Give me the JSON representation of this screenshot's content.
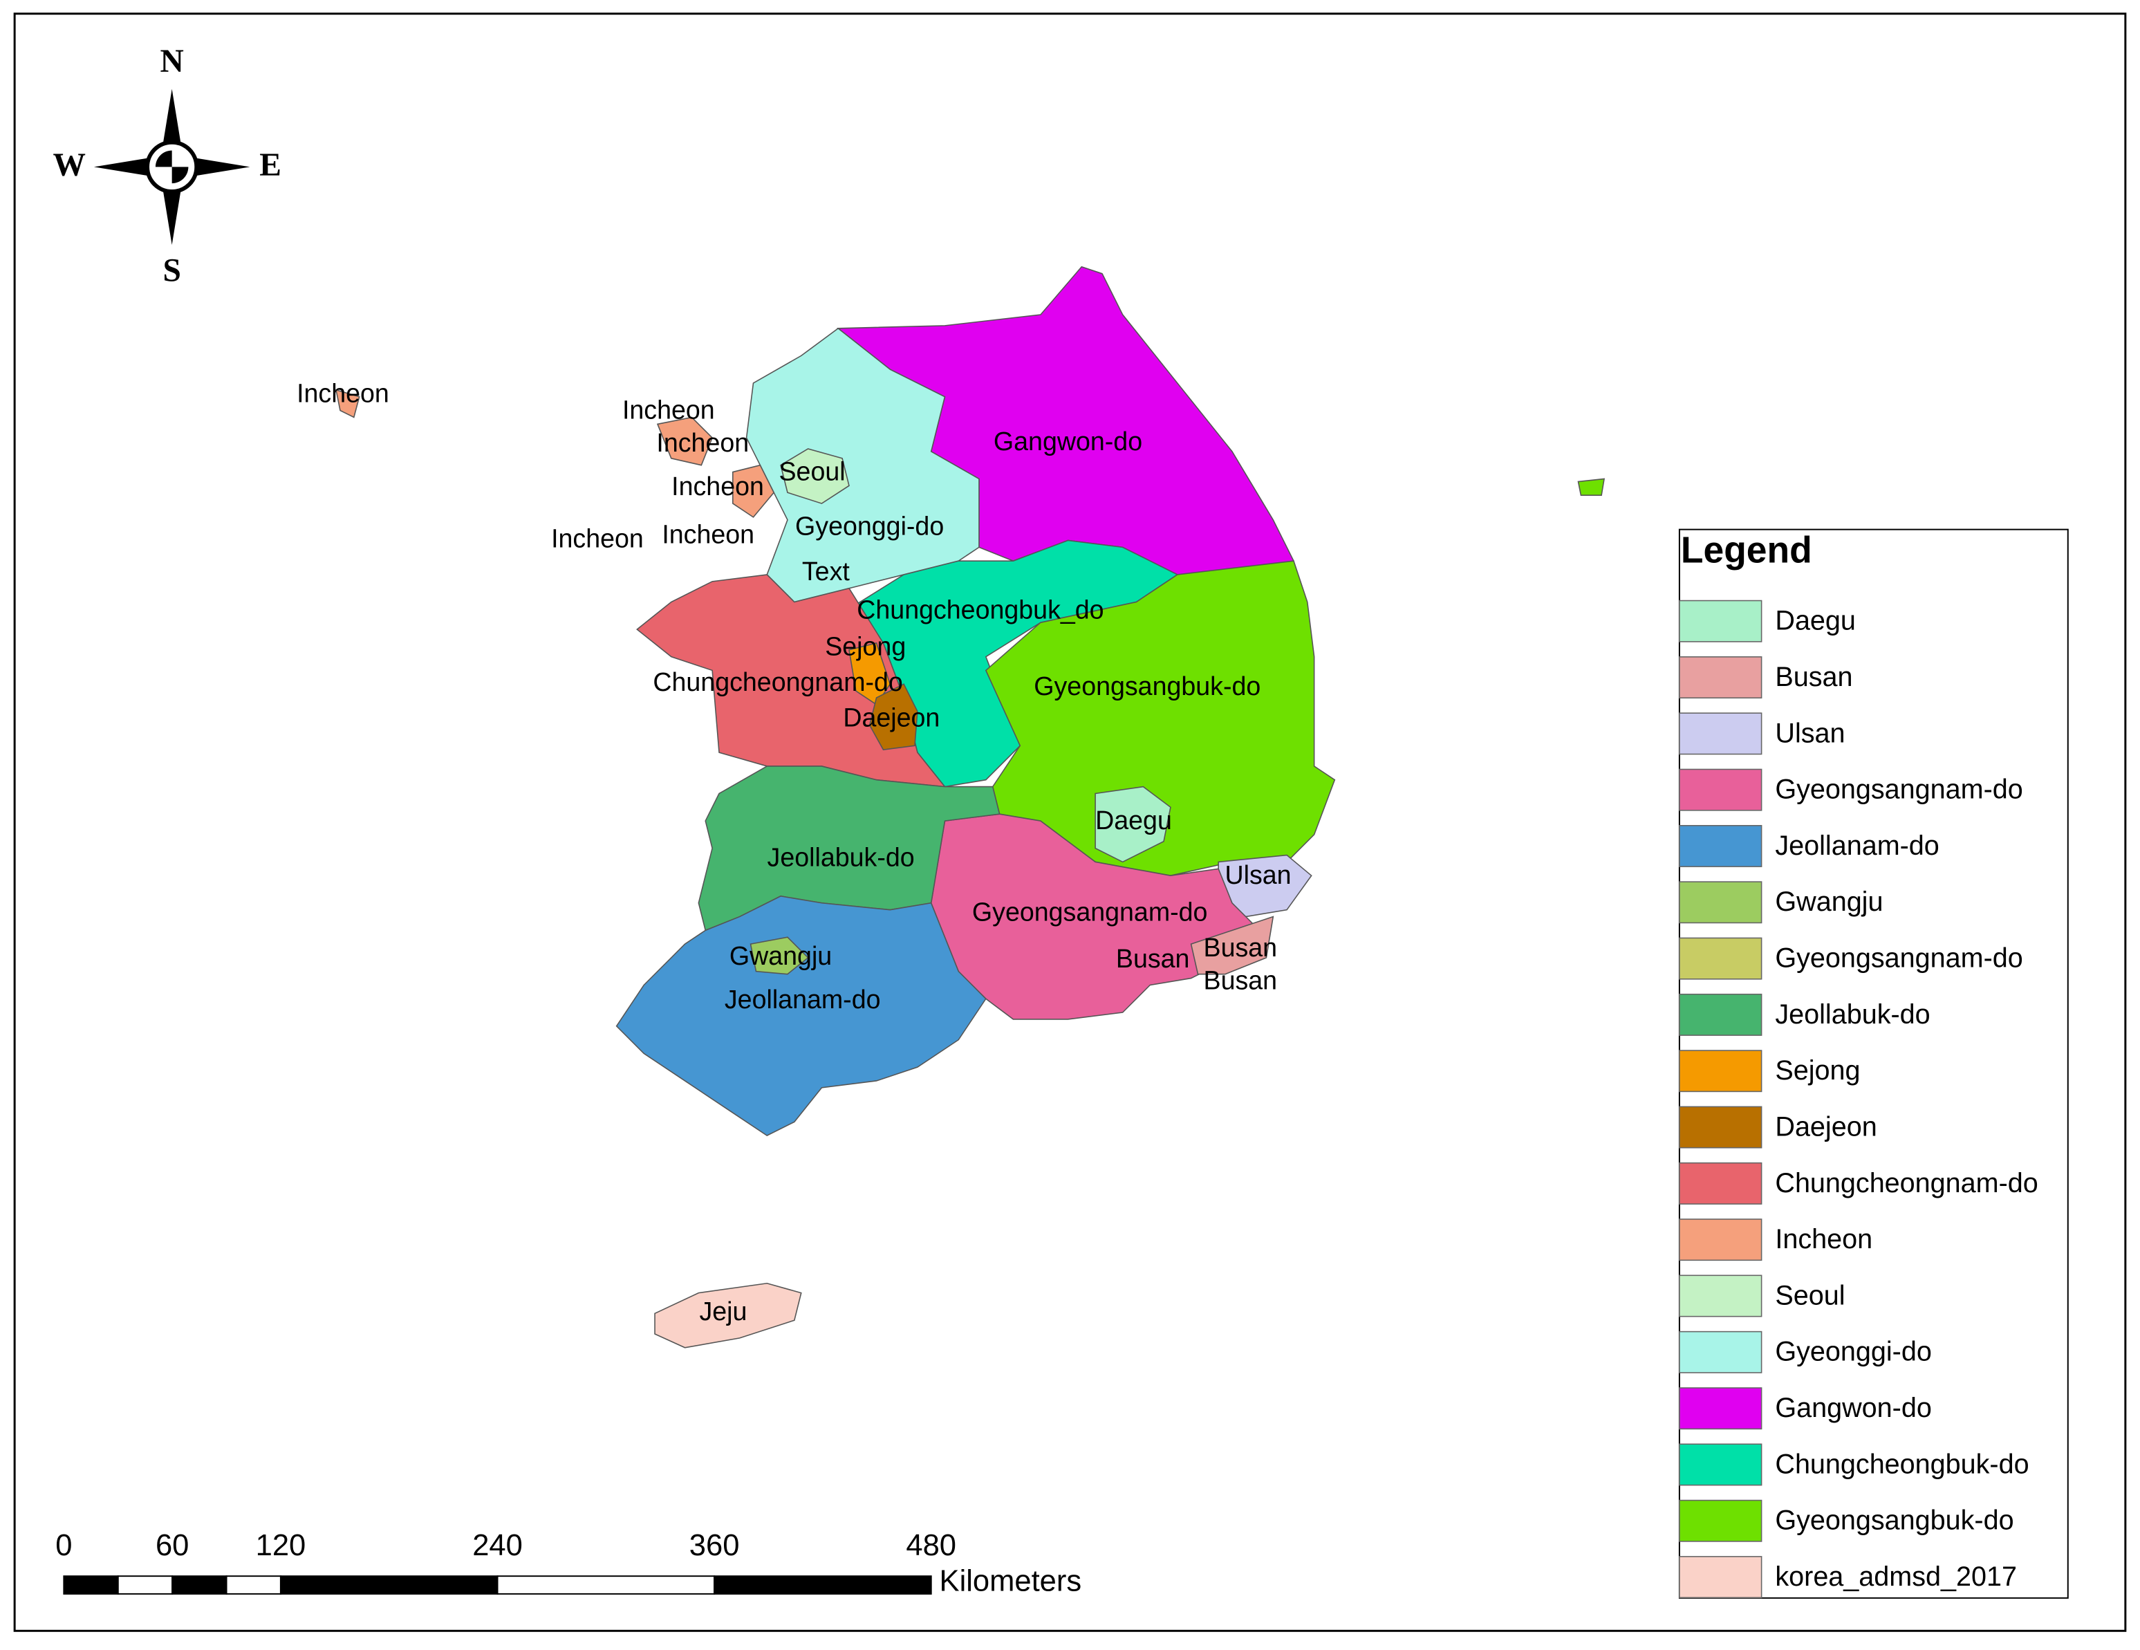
{
  "compass": {
    "north": "N",
    "south": "S",
    "east": "E",
    "west": "W"
  },
  "map_labels": [
    "Incheon",
    "Incheon",
    "Incheon",
    "Incheon",
    "Incheon",
    "Incheon",
    "Seoul",
    "Gyeonggi-do",
    "Text",
    "Chungcheongbuk_do",
    "Sejong",
    "Chungcheongnam-do",
    "Daejeon",
    "Gangwon-do",
    "Gyeongsangbuk-do",
    "Daegu",
    "Ulsan",
    "Jeollabuk-do",
    "Gyeongsangnam-do",
    "Busan",
    "Busan",
    "Busan",
    "Gwangju",
    "Jeollanam-do",
    "Jeju"
  ],
  "legend": {
    "title": "Legend",
    "items": [
      {
        "name": "Daegu",
        "color": "#a8f0c8"
      },
      {
        "name": "Busan",
        "color": "#e8a0a0"
      },
      {
        "name": "Ulsan",
        "color": "#ccccf0"
      },
      {
        "name": "Gyeongsangnam-do",
        "color": "#e8609a"
      },
      {
        "name": "Jeollanam-do",
        "color": "#4696d2"
      },
      {
        "name": "Gwangju",
        "color": "#9ccc60"
      },
      {
        "name": "Gyeongsangnam-do",
        "color": "#c8cc64"
      },
      {
        "name": "Jeollabuk-do",
        "color": "#46b46e"
      },
      {
        "name": "Sejong",
        "color": "#f59a00"
      },
      {
        "name": "Daejeon",
        "color": "#b87000"
      },
      {
        "name": "Chungcheongnam-do",
        "color": "#e8646c"
      },
      {
        "name": "Incheon",
        "color": "#f5a07c"
      },
      {
        "name": "Seoul",
        "color": "#c4f2c4"
      },
      {
        "name": "Gyeonggi-do",
        "color": "#a8f4e8"
      },
      {
        "name": "Gangwon-do",
        "color": "#e000f0"
      },
      {
        "name": "Chungcheongbuk-do",
        "color": "#00e0a8"
      },
      {
        "name": "Gyeongsangbuk-do",
        "color": "#6ee000"
      },
      {
        "name": "korea_admsd_2017",
        "color": "#fad2c8"
      }
    ]
  },
  "scale_bar": {
    "ticks": [
      0,
      60,
      120,
      240,
      360,
      480
    ],
    "unit": "Kilometers"
  }
}
